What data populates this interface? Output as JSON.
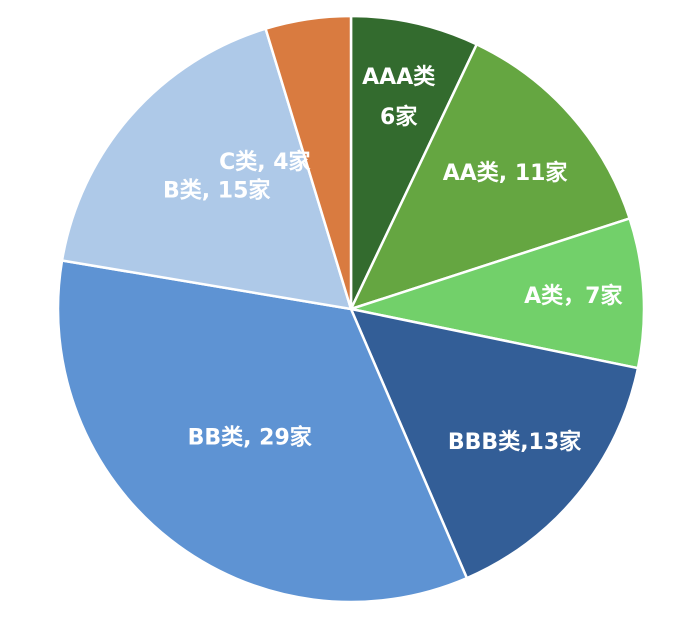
{
  "chart_data": {
    "type": "pie",
    "title": "",
    "start_angle_deg": 0,
    "direction": "clockwise",
    "legend": "none",
    "slices": [
      {
        "category": "AAA类",
        "value": 6,
        "label_lines": [
          "AAA类",
          "6家"
        ],
        "color": "#336B2E"
      },
      {
        "category": "AA类",
        "value": 11,
        "label_lines": [
          "AA类, 11家"
        ],
        "color": "#65A641"
      },
      {
        "category": "A类",
        "value": 7,
        "label_lines": [
          "A类，7家"
        ],
        "color": "#72D06A"
      },
      {
        "category": "BBB类",
        "value": 13,
        "label_lines": [
          "BBB类,13家"
        ],
        "color": "#335E97"
      },
      {
        "category": "BB类",
        "value": 29,
        "label_lines": [
          "BB类, 29家"
        ],
        "color": "#5E93D3"
      },
      {
        "category": "B类",
        "value": 15,
        "label_lines": [
          "B类, 15家"
        ],
        "color": "#AEC9E8"
      },
      {
        "category": "C类",
        "value": 4,
        "label_lines": [
          "C类, 4家"
        ],
        "color": "#D97B40"
      }
    ]
  }
}
